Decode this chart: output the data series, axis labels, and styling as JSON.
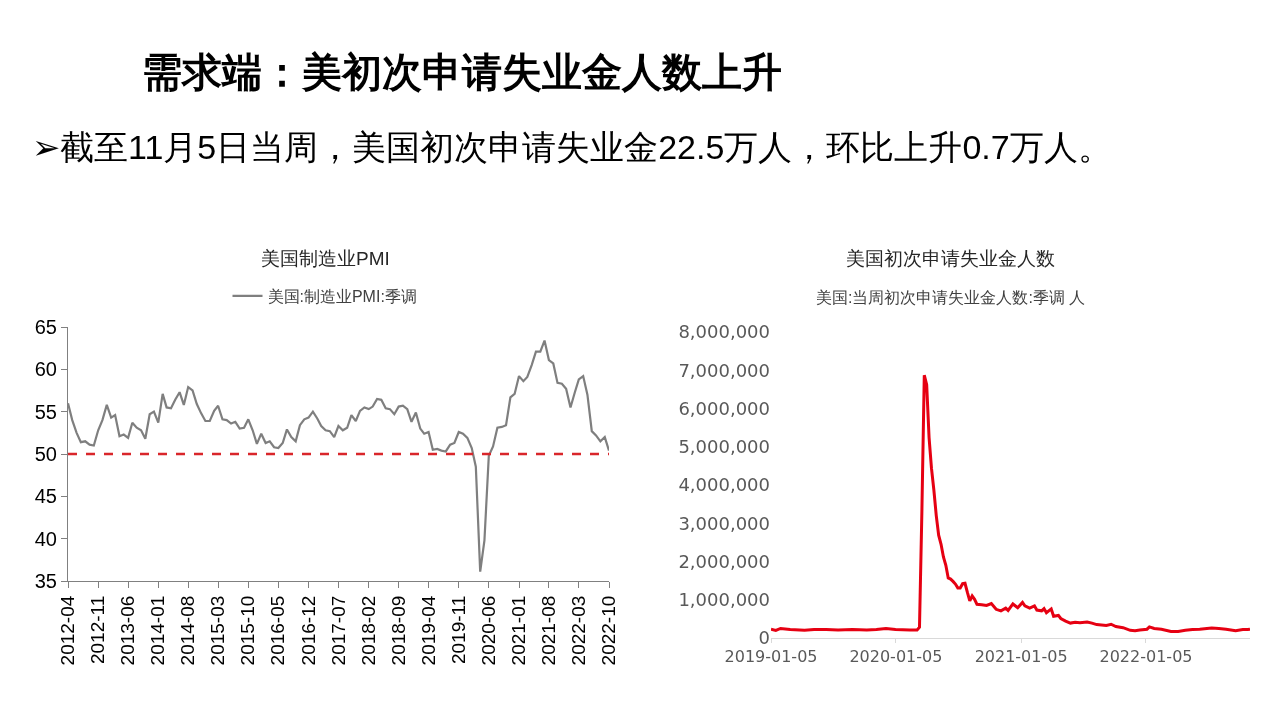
{
  "chart_data": [
    {
      "type": "other",
      "title": "需求端：美初次申请失业金人数上升",
      "subtitle": "➢截至11月5日当周，美国初次申请失业金22.5万人，环比上升0.7万人。"
    },
    {
      "type": "line",
      "title": "美国制造业PMI",
      "legend": "top",
      "x": [
        "2012-04",
        "2012-05",
        "2012-06",
        "2012-07",
        "2012-08",
        "2012-09",
        "2012-10",
        "2012-11",
        "2012-12",
        "2013-01",
        "2013-02",
        "2013-03",
        "2013-04",
        "2013-05",
        "2013-06",
        "2013-07",
        "2013-08",
        "2013-09",
        "2013-10",
        "2013-11",
        "2013-12",
        "2014-01",
        "2014-02",
        "2014-03",
        "2014-04",
        "2014-05",
        "2014-06",
        "2014-07",
        "2014-08",
        "2014-09",
        "2014-10",
        "2014-11",
        "2014-12",
        "2015-01",
        "2015-02",
        "2015-03",
        "2015-04",
        "2015-05",
        "2015-06",
        "2015-07",
        "2015-08",
        "2015-09",
        "2015-10",
        "2015-11",
        "2015-12",
        "2016-01",
        "2016-02",
        "2016-03",
        "2016-04",
        "2016-05",
        "2016-06",
        "2016-07",
        "2016-08",
        "2016-09",
        "2016-10",
        "2016-11",
        "2016-12",
        "2017-01",
        "2017-02",
        "2017-03",
        "2017-04",
        "2017-05",
        "2017-06",
        "2017-07",
        "2017-08",
        "2017-09",
        "2017-10",
        "2017-11",
        "2017-12",
        "2018-01",
        "2018-02",
        "2018-03",
        "2018-04",
        "2018-05",
        "2018-06",
        "2018-07",
        "2018-08",
        "2018-09",
        "2018-10",
        "2018-11",
        "2018-12",
        "2019-01",
        "2019-02",
        "2019-03",
        "2019-04",
        "2019-05",
        "2019-06",
        "2019-07",
        "2019-08",
        "2019-09",
        "2019-10",
        "2019-11",
        "2019-12",
        "2020-01",
        "2020-02",
        "2020-03",
        "2020-04",
        "2020-05",
        "2020-06",
        "2020-07",
        "2020-08",
        "2020-09",
        "2020-10",
        "2020-11",
        "2020-12",
        "2021-01",
        "2021-02",
        "2021-03",
        "2021-04",
        "2021-05",
        "2021-06",
        "2021-07",
        "2021-08",
        "2021-09",
        "2021-10",
        "2021-11",
        "2021-12",
        "2022-01",
        "2022-02",
        "2022-03",
        "2022-04",
        "2022-05",
        "2022-06",
        "2022-07",
        "2022-08",
        "2022-09",
        "2022-10"
      ],
      "series": [
        {
          "name": "美国:制造业PMI:季调",
          "color": "#7f7f7f",
          "values": [
            56.0,
            54.0,
            52.5,
            51.4,
            51.5,
            51.1,
            51.0,
            52.8,
            54.0,
            55.8,
            54.3,
            54.6,
            52.1,
            52.3,
            51.9,
            53.7,
            53.1,
            52.8,
            51.8,
            54.7,
            55.0,
            53.7,
            57.1,
            55.5,
            55.4,
            56.4,
            57.3,
            55.8,
            57.9,
            57.5,
            55.9,
            54.8,
            53.9,
            53.9,
            55.1,
            55.7,
            54.1,
            54.0,
            53.6,
            53.8,
            53.0,
            53.1,
            54.1,
            52.8,
            51.2,
            52.4,
            51.3,
            51.5,
            50.8,
            50.7,
            51.3,
            52.9,
            52.0,
            51.5,
            53.4,
            54.1,
            54.3,
            55.0,
            54.2,
            53.3,
            52.8,
            52.7,
            52.0,
            53.3,
            52.8,
            53.1,
            54.6,
            53.9,
            55.1,
            55.5,
            55.3,
            55.6,
            56.5,
            56.4,
            55.4,
            55.3,
            54.7,
            55.6,
            55.7,
            55.3,
            53.8,
            54.9,
            53.0,
            52.4,
            52.6,
            50.5,
            50.6,
            50.4,
            50.3,
            51.1,
            51.3,
            52.6,
            52.4,
            51.9,
            50.7,
            48.5,
            36.1,
            39.8,
            49.8,
            50.9,
            53.1,
            53.2,
            53.4,
            56.7,
            57.1,
            59.2,
            58.6,
            59.1,
            60.5,
            62.1,
            62.1,
            63.4,
            61.1,
            60.7,
            58.4,
            58.3,
            57.7,
            55.5,
            57.3,
            58.8,
            59.2,
            57.0,
            52.7,
            52.2,
            51.5,
            52.0,
            50.4
          ]
        }
      ],
      "xlim": [
        "2012-04",
        "2022-10"
      ],
      "xticks": [
        "2012-04",
        "2012-11",
        "2013-06",
        "2014-01",
        "2014-08",
        "2015-03",
        "2015-10",
        "2016-05",
        "2016-12",
        "2017-07",
        "2018-02",
        "2018-09",
        "2019-04",
        "2019-11",
        "2020-06",
        "2021-01",
        "2021-08",
        "2022-03",
        "2022-10"
      ],
      "ylim": [
        35,
        65
      ],
      "yticks": [
        35,
        40,
        45,
        50,
        55,
        60,
        65
      ],
      "ref_lines": [
        {
          "axis": "y",
          "value": 50,
          "color": "#d9262b",
          "line_style": "dashed"
        }
      ]
    },
    {
      "type": "line",
      "title": "美国初次申请失业金人数",
      "subtitle": "美国:当周初次申请失业金人数:季调 人",
      "x": [
        "2019-01-05",
        "2019-01-19",
        "2019-02-02",
        "2019-03-02",
        "2019-04-13",
        "2019-05-11",
        "2019-06-15",
        "2019-07-20",
        "2019-08-31",
        "2019-10-12",
        "2019-11-09",
        "2019-12-07",
        "2020-01-04",
        "2020-02-15",
        "2020-03-07",
        "2020-03-14",
        "2020-03-21",
        "2020-03-28",
        "2020-04-04",
        "2020-04-11",
        "2020-04-18",
        "2020-04-25",
        "2020-05-02",
        "2020-05-09",
        "2020-05-16",
        "2020-05-23",
        "2020-05-30",
        "2020-06-06",
        "2020-06-13",
        "2020-06-20",
        "2020-06-27",
        "2020-07-04",
        "2020-07-11",
        "2020-07-18",
        "2020-07-25",
        "2020-08-01",
        "2020-08-08",
        "2020-08-15",
        "2020-08-22",
        "2020-08-29",
        "2020-09-12",
        "2020-09-26",
        "2020-10-10",
        "2020-10-24",
        "2020-11-07",
        "2020-11-21",
        "2020-11-28",
        "2020-12-12",
        "2020-12-26",
        "2021-01-09",
        "2021-01-16",
        "2021-01-30",
        "2021-02-13",
        "2021-02-20",
        "2021-03-06",
        "2021-03-13",
        "2021-03-20",
        "2021-04-03",
        "2021-04-10",
        "2021-04-24",
        "2021-05-01",
        "2021-05-15",
        "2021-05-29",
        "2021-06-12",
        "2021-06-26",
        "2021-07-17",
        "2021-07-31",
        "2021-08-14",
        "2021-09-11",
        "2021-09-25",
        "2021-10-09",
        "2021-10-30",
        "2021-11-20",
        "2021-12-04",
        "2021-12-18",
        "2022-01-08",
        "2022-01-15",
        "2022-01-29",
        "2022-02-19",
        "2022-03-19",
        "2022-04-09",
        "2022-04-30",
        "2022-05-21",
        "2022-06-11",
        "2022-07-16",
        "2022-08-06",
        "2022-08-27",
        "2022-09-24",
        "2022-10-15",
        "2022-10-29",
        "2022-11-05"
      ],
      "series": [
        {
          "color": "#e60012",
          "values": [
            230000,
            200000,
            250000,
            220000,
            200000,
            220000,
            220000,
            210000,
            220000,
            210000,
            220000,
            250000,
            220000,
            210000,
            210000,
            280000,
            3310000,
            6870000,
            6620000,
            5240000,
            4440000,
            3870000,
            3200000,
            2690000,
            2450000,
            2120000,
            1900000,
            1570000,
            1540000,
            1480000,
            1410000,
            1310000,
            1310000,
            1420000,
            1430000,
            1190000,
            970000,
            1100000,
            1010000,
            880000,
            870000,
            850000,
            900000,
            750000,
            710000,
            780000,
            720000,
            890000,
            790000,
            930000,
            840000,
            780000,
            840000,
            730000,
            710000,
            770000,
            660000,
            760000,
            570000,
            590000,
            510000,
            440000,
            390000,
            410000,
            400000,
            420000,
            390000,
            350000,
            330000,
            360000,
            300000,
            270000,
            200000,
            190000,
            210000,
            230000,
            290000,
            250000,
            230000,
            170000,
            170000,
            200000,
            220000,
            230000,
            260000,
            250000,
            230000,
            190000,
            220000,
            220000,
            230000
          ]
        }
      ],
      "xlim": [
        "2019-01-05",
        "2022-11-05"
      ],
      "xticks": [
        "2019-01-05",
        "2020-01-05",
        "2021-01-05",
        "2022-01-05"
      ],
      "ylim": [
        0,
        8000000
      ],
      "yticks": [
        0,
        {
          "value": 1000000,
          "label": "1,000,000"
        },
        {
          "value": 2000000,
          "label": "2,000,000"
        },
        {
          "value": 3000000,
          "label": "3,000,000"
        },
        {
          "value": 4000000,
          "label": "4,000,000"
        },
        {
          "value": 5000000,
          "label": "5,000,000"
        },
        {
          "value": 6000000,
          "label": "6,000,000"
        },
        {
          "value": 7000000,
          "label": "7,000,000"
        },
        {
          "value": 8000000,
          "label": "8,000,000"
        }
      ]
    }
  ]
}
